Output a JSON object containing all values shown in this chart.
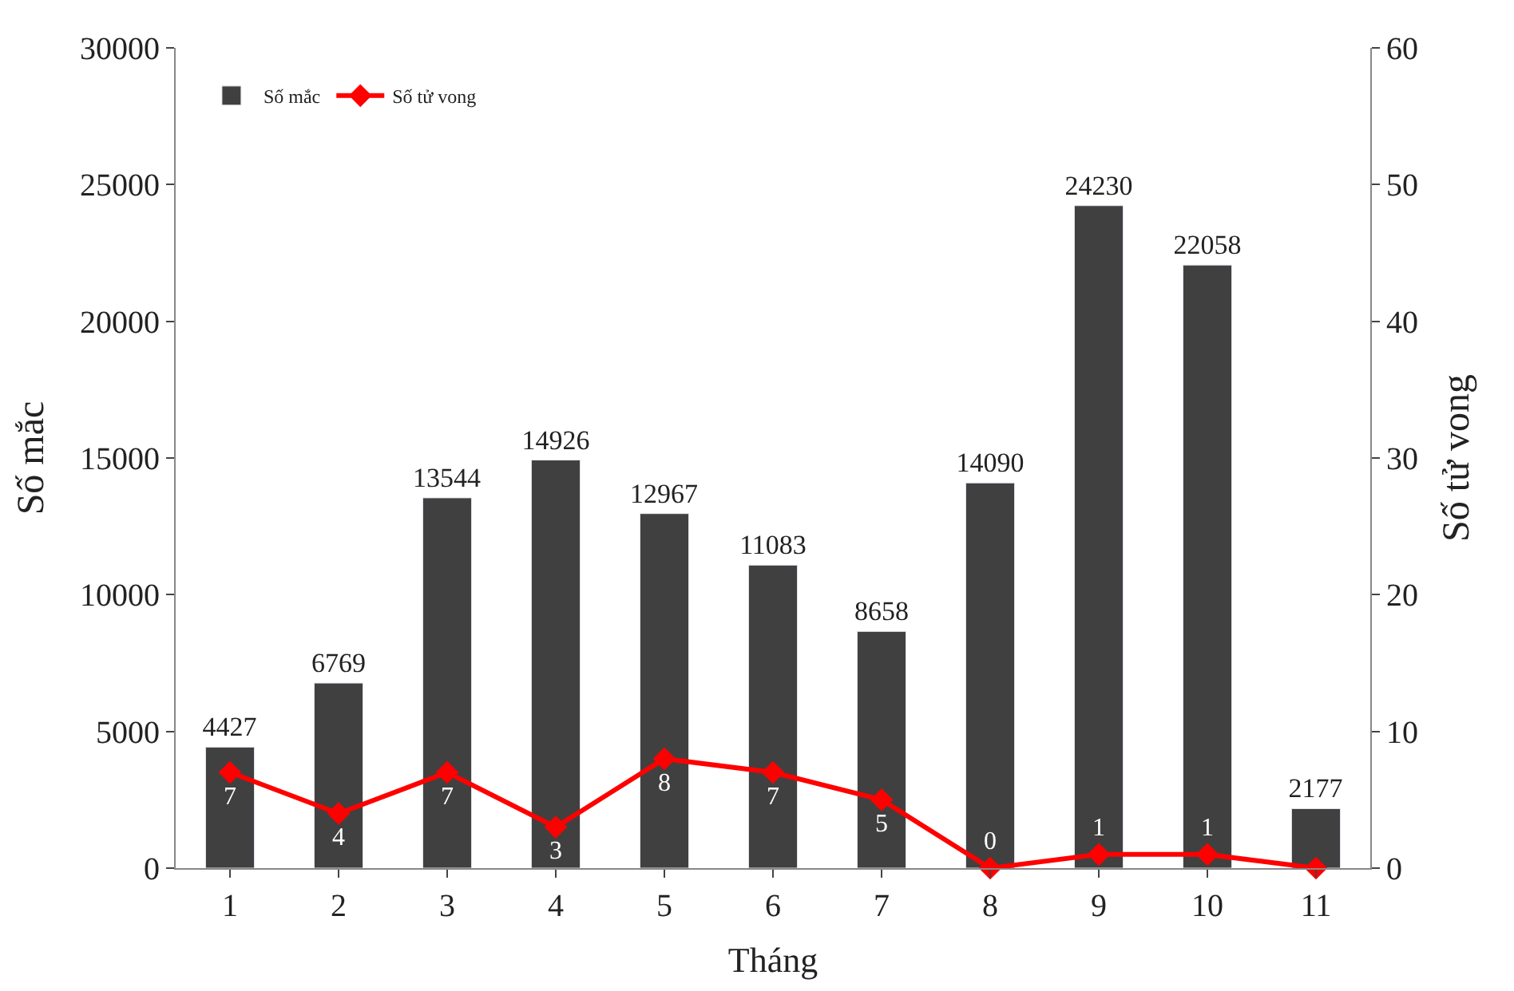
{
  "chart_data": {
    "type": "bar",
    "xlabel": "Tháng",
    "ylabel": "Số mắc",
    "y2label": "Số tử vong",
    "categories": [
      "1",
      "2",
      "3",
      "4",
      "5",
      "6",
      "7",
      "8",
      "9",
      "10",
      "11"
    ],
    "series": [
      {
        "name": "Số mắc",
        "color": "#404040",
        "values": [
          4427,
          6769,
          13544,
          14926,
          12967,
          11083,
          8658,
          14090,
          24230,
          22058,
          2177
        ],
        "value_labels": [
          "4427",
          "6769",
          "13544",
          "14926",
          "12967",
          "11083",
          "8658",
          "14090",
          "24230",
          "22058",
          "2177"
        ]
      },
      {
        "name": "Số tử vong",
        "type": "line",
        "axis": "y2",
        "color": "#ff0000",
        "marker": "diamond",
        "values": [
          7,
          4,
          7,
          3,
          8,
          7,
          5,
          0,
          1,
          1,
          0
        ],
        "value_labels": [
          "7",
          "4",
          "7",
          "3",
          "8",
          "7",
          "5",
          "0",
          "1",
          "1",
          null
        ]
      }
    ],
    "ylim": [
      0,
      30000
    ],
    "yticks": [
      0,
      5000,
      10000,
      15000,
      20000,
      25000,
      30000
    ],
    "y2lim": [
      0,
      60
    ],
    "y2ticks": [
      0,
      10,
      20,
      30,
      40,
      50,
      60
    ],
    "legend": "top left"
  }
}
